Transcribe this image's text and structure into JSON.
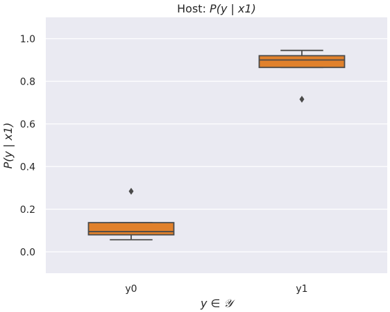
{
  "chart_data": {
    "type": "box",
    "title_prefix": "Host: ",
    "title_math": "P(y | x1)",
    "xlabel": "y ∈ 𝒴",
    "ylabel": "P(y | x1)",
    "categories": [
      "y0",
      "y1"
    ],
    "ylim": [
      -0.1,
      1.1
    ],
    "yticks": [
      0.0,
      0.2,
      0.4,
      0.6,
      0.8,
      1.0
    ],
    "ytick_labels": [
      "0.0",
      "0.2",
      "0.4",
      "0.6",
      "0.8",
      "1.0"
    ],
    "grid": true,
    "boxes": [
      {
        "category": "y0",
        "whisker_low": 0.057,
        "q1": 0.08,
        "median": 0.095,
        "q3": 0.137,
        "whisker_high": 0.137,
        "outliers": [
          0.284
        ]
      },
      {
        "category": "y1",
        "whisker_low": 0.865,
        "q1": 0.865,
        "median": 0.9,
        "q3": 0.92,
        "whisker_high": 0.945,
        "outliers": [
          0.716
        ]
      }
    ],
    "colors": {
      "box_fill": "#E1812C",
      "line": "#4a4a4a",
      "background": "#EAEAF2",
      "grid": "#ffffff"
    }
  }
}
